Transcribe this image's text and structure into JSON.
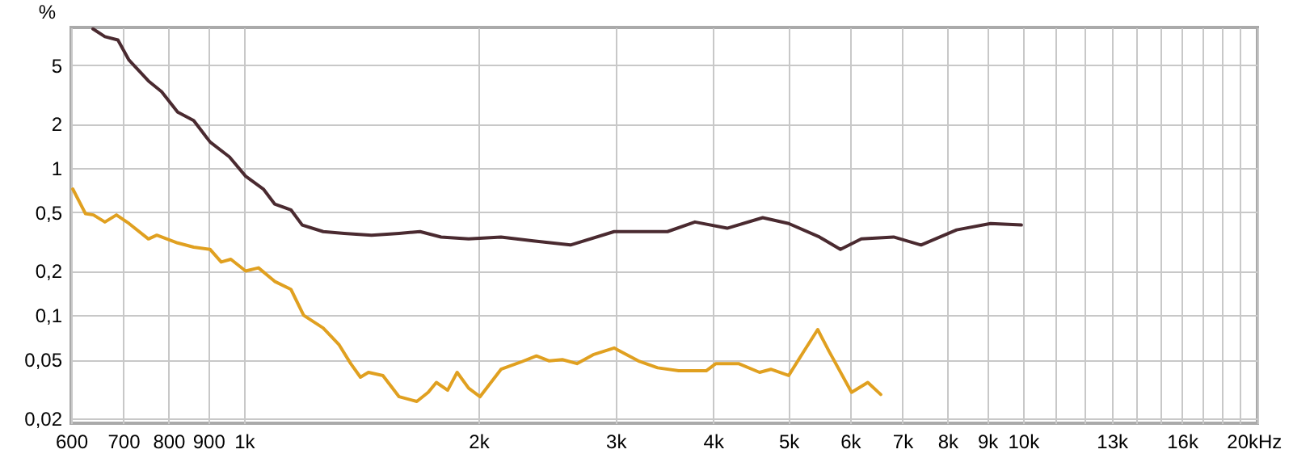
{
  "chart_data": {
    "type": "line",
    "ylabel": "%",
    "log": "xy",
    "grid": true,
    "marker": "none",
    "xlim": [
      600,
      20000
    ],
    "ylim": [
      0.0185,
      9
    ],
    "xticks": [
      600,
      700,
      800,
      900,
      {
        "value": 1000,
        "label": "1k"
      },
      {
        "value": 2000,
        "label": "2k"
      },
      {
        "value": 3000,
        "label": "3k"
      },
      {
        "value": 4000,
        "label": "4k"
      },
      {
        "value": 5000,
        "label": "5k"
      },
      {
        "value": 6000,
        "label": "6k"
      },
      {
        "value": 7000,
        "label": "7k"
      },
      {
        "value": 8000,
        "label": "8k"
      },
      {
        "value": 9000,
        "label": "9k"
      },
      {
        "value": 10000,
        "label": "10k"
      },
      {
        "value": 11000,
        "label": null
      },
      {
        "value": 12000,
        "label": null
      },
      {
        "value": 13000,
        "label": "13k"
      },
      {
        "value": 14000,
        "label": null
      },
      {
        "value": 15000,
        "label": null
      },
      {
        "value": 16000,
        "label": "16k"
      },
      {
        "value": 17000,
        "label": null
      },
      {
        "value": 18000,
        "label": null
      },
      {
        "value": 19000,
        "label": null
      },
      {
        "value": 20000,
        "label": "20k"
      }
    ],
    "xlabel": "Hz",
    "yticks": [
      {
        "value": 0.02,
        "label": "0,02"
      },
      {
        "value": 0.05,
        "label": "0,05"
      },
      {
        "value": 0.1,
        "label": "0,1"
      },
      {
        "value": 0.2,
        "label": "0,2"
      },
      {
        "value": 0.5,
        "label": "0,5"
      },
      1,
      2,
      5
    ],
    "series": [
      {
        "color": "#4a2a30",
        "x": [
          640,
          663,
          689,
          712,
          754,
          784,
          822,
          862,
          905,
          958,
          1005,
          1059,
          1095,
          1149,
          1188,
          1264,
          1345,
          1458,
          1582,
          1683,
          1791,
          1943,
          2138,
          2352,
          2625,
          2987,
          3497,
          3793,
          4172,
          4634,
          5004,
          5480,
          5831,
          6202,
          6823,
          7399,
          8220,
          9088,
          9954
        ],
        "values": [
          8.8,
          7.8,
          7.4,
          5.4,
          3.9,
          3.3,
          2.4,
          2.1,
          1.5,
          1.19,
          0.88,
          0.72,
          0.57,
          0.52,
          0.41,
          0.37,
          0.36,
          0.35,
          0.36,
          0.37,
          0.34,
          0.33,
          0.34,
          0.32,
          0.3,
          0.37,
          0.37,
          0.43,
          0.39,
          0.46,
          0.42,
          0.34,
          0.28,
          0.33,
          0.34,
          0.3,
          0.38,
          0.42,
          0.41
        ]
      },
      {
        "color": "#e0a020",
        "x": [
          603,
          626,
          641,
          663,
          686,
          712,
          754,
          773,
          822,
          862,
          905,
          935,
          962,
          1005,
          1044,
          1095,
          1149,
          1193,
          1264,
          1325,
          1371,
          1411,
          1445,
          1508,
          1582,
          1667,
          1724,
          1766,
          1826,
          1878,
          1943,
          2009,
          2138,
          2264,
          2374,
          2466,
          2563,
          2676,
          2807,
          2987,
          3208,
          3397,
          3615,
          3921,
          4035,
          4314,
          4591,
          4747,
          5004,
          5223,
          5452,
          5637,
          6026,
          6322,
          6568
        ],
        "values": [
          0.72,
          0.49,
          0.48,
          0.43,
          0.48,
          0.42,
          0.33,
          0.35,
          0.31,
          0.29,
          0.28,
          0.23,
          0.24,
          0.2,
          0.21,
          0.17,
          0.15,
          0.1,
          0.082,
          0.063,
          0.047,
          0.038,
          0.041,
          0.039,
          0.028,
          0.026,
          0.03,
          0.035,
          0.031,
          0.041,
          0.032,
          0.028,
          0.043,
          0.048,
          0.053,
          0.049,
          0.05,
          0.047,
          0.054,
          0.06,
          0.049,
          0.044,
          0.042,
          0.042,
          0.047,
          0.047,
          0.041,
          0.043,
          0.039,
          0.056,
          0.08,
          0.057,
          0.03,
          0.035,
          0.029
        ]
      }
    ]
  }
}
